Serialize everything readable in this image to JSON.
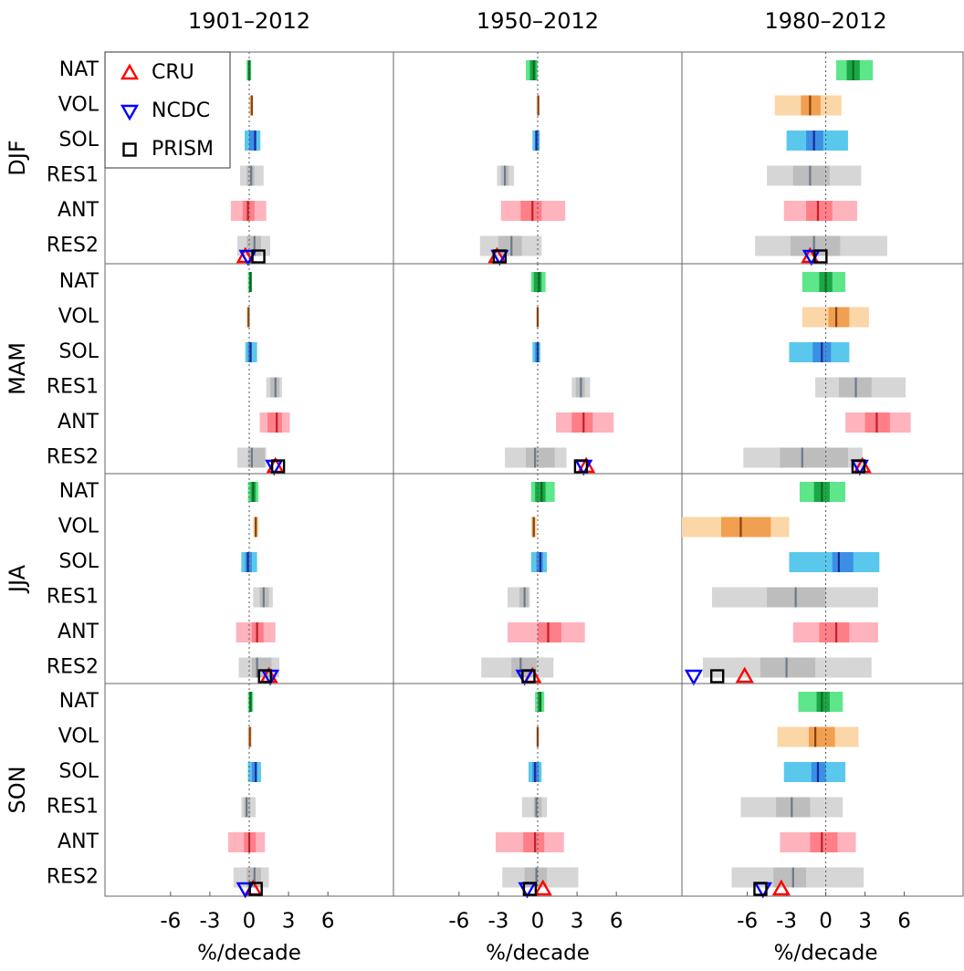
{
  "chart_data": {
    "type": "range",
    "columns": [
      {
        "title": "1901–2012",
        "xlim": [
          -11,
          11
        ]
      },
      {
        "title": "1950–2012",
        "xlim": [
          -11,
          11
        ]
      },
      {
        "title": "1980–2012",
        "xlim": [
          -11,
          10.5
        ]
      }
    ],
    "rows": [
      "DJF",
      "MAM",
      "JJA",
      "SON"
    ],
    "categories": [
      "NAT",
      "VOL",
      "SOL",
      "RES1",
      "ANT",
      "RES2"
    ],
    "category_colors": [
      [
        "#5ee68a",
        "#1aa847",
        "#0a6a20"
      ],
      [
        "#fbd6a6",
        "#f0a050",
        "#8a4010"
      ],
      [
        "#5ac8ec",
        "#3b8fe5",
        "#1a2d9a"
      ],
      [
        "#d6d6d6",
        "#bdbdbd",
        "#6a7a8a"
      ],
      [
        "#ffb3bd",
        "#ff7e88",
        "#c0202a"
      ],
      [
        "#d6d6d6",
        "#bdbdbd",
        "#6a7a8a"
      ]
    ],
    "xlabel": "%/decade",
    "xticks": [
      -6,
      -3,
      0,
      3,
      6
    ],
    "observations": [
      {
        "name": "CRU",
        "color": "#ff0000",
        "marker": "triangle-up"
      },
      {
        "name": "NCDC",
        "color": "#0000ff",
        "marker": "triangle-down"
      },
      {
        "name": "PRISM",
        "color": "#000000",
        "marker": "square"
      }
    ],
    "panels": [
      [
        {
          "bars": [
            [
              -0.2,
              -0.1,
              0,
              0.1,
              0.15
            ],
            [
              0,
              0.1,
              0.2,
              0.2,
              0.3
            ],
            [
              -0.35,
              0,
              0.45,
              0.55,
              0.85
            ],
            [
              -0.7,
              -0.2,
              0.15,
              0.4,
              1.1
            ],
            [
              -1.4,
              -0.5,
              -0.1,
              0.4,
              1.3
            ],
            [
              -0.9,
              -0.2,
              0.4,
              0.9,
              1.6
            ]
          ],
          "obs": [
            -0.3,
            -0.1,
            0.7
          ]
        },
        {
          "bars": [
            [
              -0.9,
              -0.6,
              -0.3,
              -0.1,
              0
            ],
            [
              -0.1,
              0,
              0.05,
              0.1,
              0.1
            ],
            [
              -0.4,
              -0.2,
              -0.1,
              0.1,
              0.15
            ],
            [
              -3.1,
              -2.8,
              -2.5,
              -2.2,
              -1.8
            ],
            [
              -2.8,
              -1.3,
              -0.4,
              0.3,
              2.1
            ],
            [
              -4.4,
              -3.0,
              -2.0,
              -1.2,
              0.3
            ]
          ],
          "obs": [
            -3.1,
            -2.9,
            -2.9
          ]
        },
        {
          "bars": [
            [
              0.8,
              1.6,
              2.1,
              2.6,
              3.6
            ],
            [
              -3.9,
              -1.9,
              -1.2,
              -0.4,
              1.2
            ],
            [
              -3.0,
              -1.5,
              -0.9,
              -0.2,
              1.7
            ],
            [
              -4.5,
              -2.5,
              -1.2,
              0.3,
              2.7
            ],
            [
              -3.2,
              -1.5,
              -0.6,
              0.5,
              2.4
            ],
            [
              -5.4,
              -2.7,
              -0.9,
              1.1,
              4.7
            ]
          ],
          "obs": [
            -1.2,
            -1.1,
            -0.4
          ]
        }
      ],
      [
        {
          "bars": [
            [
              -0.1,
              0,
              0.1,
              0.2,
              0.2
            ],
            [
              -0.2,
              -0.1,
              -0.05,
              0,
              0.05
            ],
            [
              -0.3,
              -0.1,
              0.1,
              0.2,
              0.6
            ],
            [
              1.3,
              1.6,
              2.0,
              2.3,
              2.5
            ],
            [
              0.8,
              1.4,
              2.1,
              2.5,
              3.1
            ],
            [
              -0.9,
              -0.1,
              0.2,
              1.2,
              1.3
            ]
          ],
          "obs": [
            2.0,
            1.9,
            2.2
          ]
        },
        {
          "bars": [
            [
              -0.5,
              -0.3,
              0.1,
              0.3,
              0.6
            ],
            [
              -0.1,
              0,
              0,
              0.05,
              0.1
            ],
            [
              -0.4,
              -0.2,
              0,
              0.1,
              0.2
            ],
            [
              2.6,
              2.9,
              3.3,
              3.6,
              4.0
            ],
            [
              1.4,
              2.6,
              3.5,
              4.2,
              5.8
            ],
            [
              -2.5,
              -0.9,
              -0.2,
              1.3,
              2.2
            ]
          ],
          "obs": [
            3.7,
            3.5,
            3.3
          ]
        },
        {
          "bars": [
            [
              -1.8,
              -0.5,
              0,
              0.5,
              1.5
            ],
            [
              -1.8,
              0.2,
              0.8,
              1.8,
              3.3
            ],
            [
              -2.8,
              -1.0,
              -0.3,
              0.4,
              1.8
            ],
            [
              -0.8,
              1.0,
              2.3,
              3.5,
              6.1
            ],
            [
              1.5,
              3.0,
              3.9,
              4.9,
              6.5
            ],
            [
              -6.3,
              -3.5,
              -1.8,
              1.7,
              2.8
            ]
          ],
          "obs": [
            2.8,
            2.6,
            2.5
          ]
        }
      ],
      [
        {
          "bars": [
            [
              -0.1,
              0.1,
              0.3,
              0.5,
              0.7
            ],
            [
              0.3,
              0.4,
              0.5,
              0.6,
              0.7
            ],
            [
              -0.6,
              -0.3,
              -0.1,
              0.2,
              0.6
            ],
            [
              0.3,
              0.8,
              1.1,
              1.5,
              1.8
            ],
            [
              -1.0,
              0.2,
              0.6,
              1.1,
              2.0
            ],
            [
              -0.8,
              0.2,
              0.6,
              1.7,
              2.3
            ]
          ],
          "obs": [
            1.5,
            1.6,
            1.2
          ]
        },
        {
          "bars": [
            [
              -0.5,
              -0.2,
              0.3,
              0.6,
              1.3
            ],
            [
              -0.5,
              -0.4,
              -0.3,
              -0.2,
              -0.1
            ],
            [
              -0.5,
              -0.1,
              0.2,
              0.4,
              0.7
            ],
            [
              -2.3,
              -1.4,
              -1.0,
              -0.7,
              -0.6
            ],
            [
              -2.3,
              0,
              0.8,
              1.8,
              3.6
            ],
            [
              -4.3,
              -2.0,
              -1.3,
              -0.1,
              1.2
            ]
          ],
          "obs": [
            -0.4,
            -1.0,
            -0.7
          ]
        },
        {
          "bars": [
            [
              -2.0,
              -0.9,
              -0.3,
              0.3,
              1.5
            ],
            [
              -11,
              -8.0,
              -6.5,
              -4.2,
              -2.8
            ],
            [
              -2.8,
              0.5,
              1.0,
              2.1,
              4.1
            ],
            [
              -8.7,
              -4.5,
              -2.3,
              0,
              4.0
            ],
            [
              -2.5,
              -0.5,
              0.8,
              1.8,
              4.0
            ],
            [
              -9.4,
              -5.0,
              -3.0,
              -0.8,
              3.5
            ]
          ],
          "obs": [
            -6.2,
            -10.1,
            -8.3
          ]
        }
      ],
      [
        {
          "bars": [
            [
              -0.1,
              0,
              0.1,
              0.2,
              0.3
            ],
            [
              -0.1,
              0,
              0.05,
              0.1,
              0.2
            ],
            [
              -0.1,
              0.2,
              0.5,
              0.6,
              0.9
            ],
            [
              -0.6,
              -0.4,
              -0.2,
              0.1,
              0.5
            ],
            [
              -1.6,
              -0.4,
              0,
              0.5,
              1.2
            ],
            [
              -1.2,
              -0.2,
              0.4,
              0.9,
              1.5
            ]
          ],
          "obs": [
            0.3,
            -0.3,
            0.5
          ]
        },
        {
          "bars": [
            [
              -0.2,
              0,
              0.2,
              0.3,
              0.5
            ],
            [
              -0.1,
              -0.05,
              0,
              0.05,
              0.1
            ],
            [
              -0.7,
              -0.4,
              -0.2,
              0.1,
              0.3
            ],
            [
              -1.2,
              -0.3,
              -0.1,
              0.3,
              0.7
            ],
            [
              -3.2,
              -1.1,
              -0.2,
              0.5,
              2.0
            ],
            [
              -2.7,
              -1.0,
              -0.1,
              0.7,
              3.1
            ]
          ],
          "obs": [
            0.4,
            -0.8,
            -0.6
          ]
        },
        {
          "bars": [
            [
              -2.1,
              -0.7,
              -0.3,
              0.3,
              1.3
            ],
            [
              -3.7,
              -1.3,
              -0.8,
              0.7,
              2.5
            ],
            [
              -3.2,
              -1.1,
              -0.6,
              0,
              1.5
            ],
            [
              -6.5,
              -3.8,
              -2.6,
              -1.2,
              1.3
            ],
            [
              -3.5,
              -1.2,
              -0.3,
              0.9,
              2.3
            ],
            [
              -7.2,
              -4.0,
              -2.5,
              -1.5,
              2.9
            ]
          ],
          "obs": [
            -3.4,
            -4.8,
            -5.0
          ]
        }
      ]
    ]
  }
}
